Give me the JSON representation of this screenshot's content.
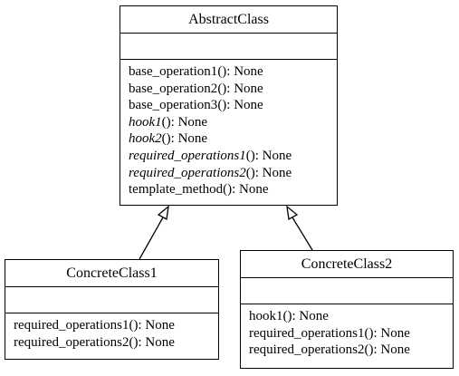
{
  "classes": {
    "abstract": {
      "name": "AbstractClass",
      "operations": [
        {
          "name": "base_operation1",
          "suffix": "(): None",
          "abstract": false
        },
        {
          "name": "base_operation2",
          "suffix": "(): None",
          "abstract": false
        },
        {
          "name": "base_operation3",
          "suffix": "(): None",
          "abstract": false
        },
        {
          "name": "hook1",
          "suffix": "(): None",
          "abstract": true
        },
        {
          "name": "hook2",
          "suffix": "(): None",
          "abstract": true
        },
        {
          "name": "required_operations1",
          "suffix": "(): None",
          "abstract": true
        },
        {
          "name": "required_operations2",
          "suffix": "(): None",
          "abstract": true
        },
        {
          "name": "template_method",
          "suffix": "(): None",
          "abstract": false
        }
      ]
    },
    "concrete1": {
      "name": "ConcreteClass1",
      "operations": [
        {
          "name": "required_operations1",
          "suffix": "(): None",
          "abstract": false
        },
        {
          "name": "required_operations2",
          "suffix": "(): None",
          "abstract": false
        }
      ]
    },
    "concrete2": {
      "name": "ConcreteClass2",
      "operations": [
        {
          "name": "hook1",
          "suffix": "(): None",
          "abstract": false
        },
        {
          "name": "required_operations1",
          "suffix": "(): None",
          "abstract": false
        },
        {
          "name": "required_operations2",
          "suffix": "(): None",
          "abstract": false
        }
      ]
    }
  },
  "relations": [
    {
      "from": "concrete1",
      "to": "abstract",
      "type": "inheritance"
    },
    {
      "from": "concrete2",
      "to": "abstract",
      "type": "inheritance"
    }
  ]
}
